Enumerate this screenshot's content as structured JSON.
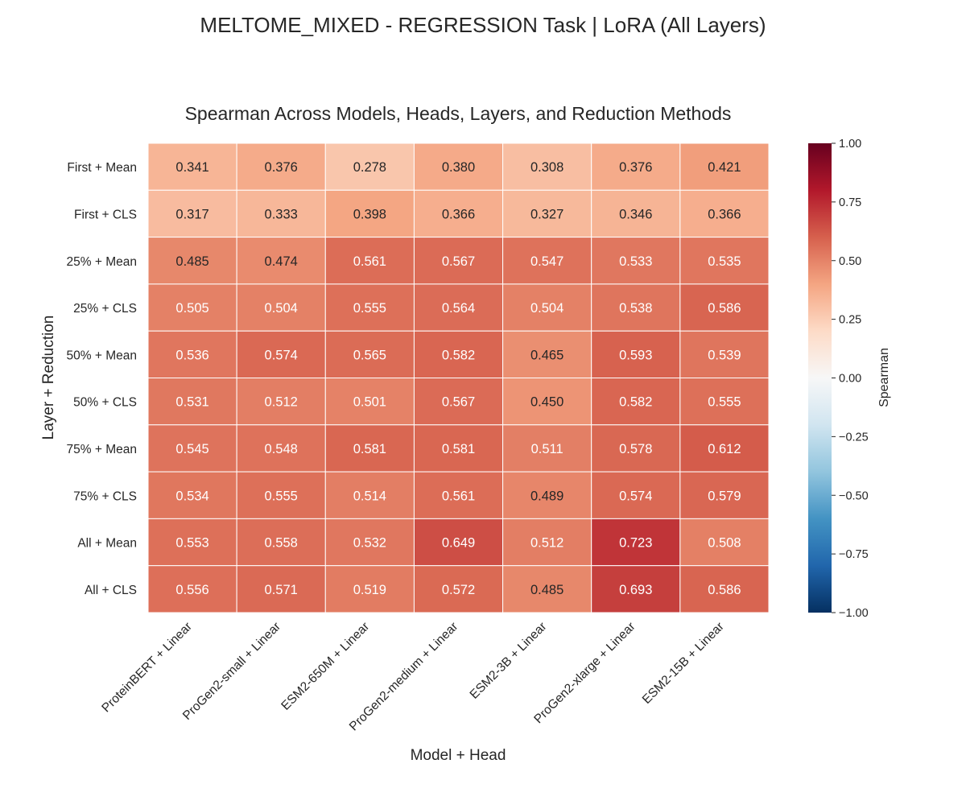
{
  "chart_data": {
    "type": "heatmap",
    "suptitle": "MELTOME_MIXED - REGRESSION Task | LoRA (All Layers)",
    "title": "Spearman Across Models, Heads, Layers, and Reduction Methods",
    "xlabel": "Model + Head",
    "ylabel": "Layer + Reduction",
    "x_categories": [
      "ProteinBERT + Linear",
      "ProGen2-small + Linear",
      "ESM2-650M + Linear",
      "ProGen2-medium + Linear",
      "ESM2-3B + Linear",
      "ProGen2-xlarge + Linear",
      "ESM2-15B + Linear"
    ],
    "y_categories": [
      "First + Mean",
      "First + CLS",
      "25% + Mean",
      "25% + CLS",
      "50% + Mean",
      "50% + CLS",
      "75% + Mean",
      "75% + CLS",
      "All + Mean",
      "All + CLS"
    ],
    "values": [
      [
        0.341,
        0.376,
        0.278,
        0.38,
        0.308,
        0.376,
        0.421
      ],
      [
        0.317,
        0.333,
        0.398,
        0.366,
        0.327,
        0.346,
        0.366
      ],
      [
        0.485,
        0.474,
        0.561,
        0.567,
        0.547,
        0.533,
        0.535
      ],
      [
        0.505,
        0.504,
        0.555,
        0.564,
        0.504,
        0.538,
        0.586
      ],
      [
        0.536,
        0.574,
        0.565,
        0.582,
        0.465,
        0.593,
        0.539
      ],
      [
        0.531,
        0.512,
        0.501,
        0.567,
        0.45,
        0.582,
        0.555
      ],
      [
        0.545,
        0.548,
        0.581,
        0.581,
        0.511,
        0.578,
        0.612
      ],
      [
        0.534,
        0.555,
        0.514,
        0.561,
        0.489,
        0.574,
        0.579
      ],
      [
        0.553,
        0.558,
        0.532,
        0.649,
        0.512,
        0.723,
        0.508
      ],
      [
        0.556,
        0.571,
        0.519,
        0.572,
        0.485,
        0.693,
        0.586
      ]
    ],
    "value_format": "3 decimals",
    "colormap": "RdBu_r",
    "vmin": -1.0,
    "vmax": 1.0,
    "colorbar": {
      "label": "Spearman",
      "ticks": [
        1.0,
        0.75,
        0.5,
        0.25,
        0.0,
        -0.25,
        -0.5,
        -0.75,
        -1.0
      ],
      "tick_labels": [
        "1.00",
        "0.75",
        "0.50",
        "0.25",
        "0.00",
        "−0.25",
        "−0.50",
        "−0.75",
        "−1.00"
      ],
      "position": "right"
    },
    "grid": false,
    "colors": {
      "text_dark": "#262626",
      "text_light": "#ffffff",
      "cell_border": "#ffffff"
    }
  }
}
